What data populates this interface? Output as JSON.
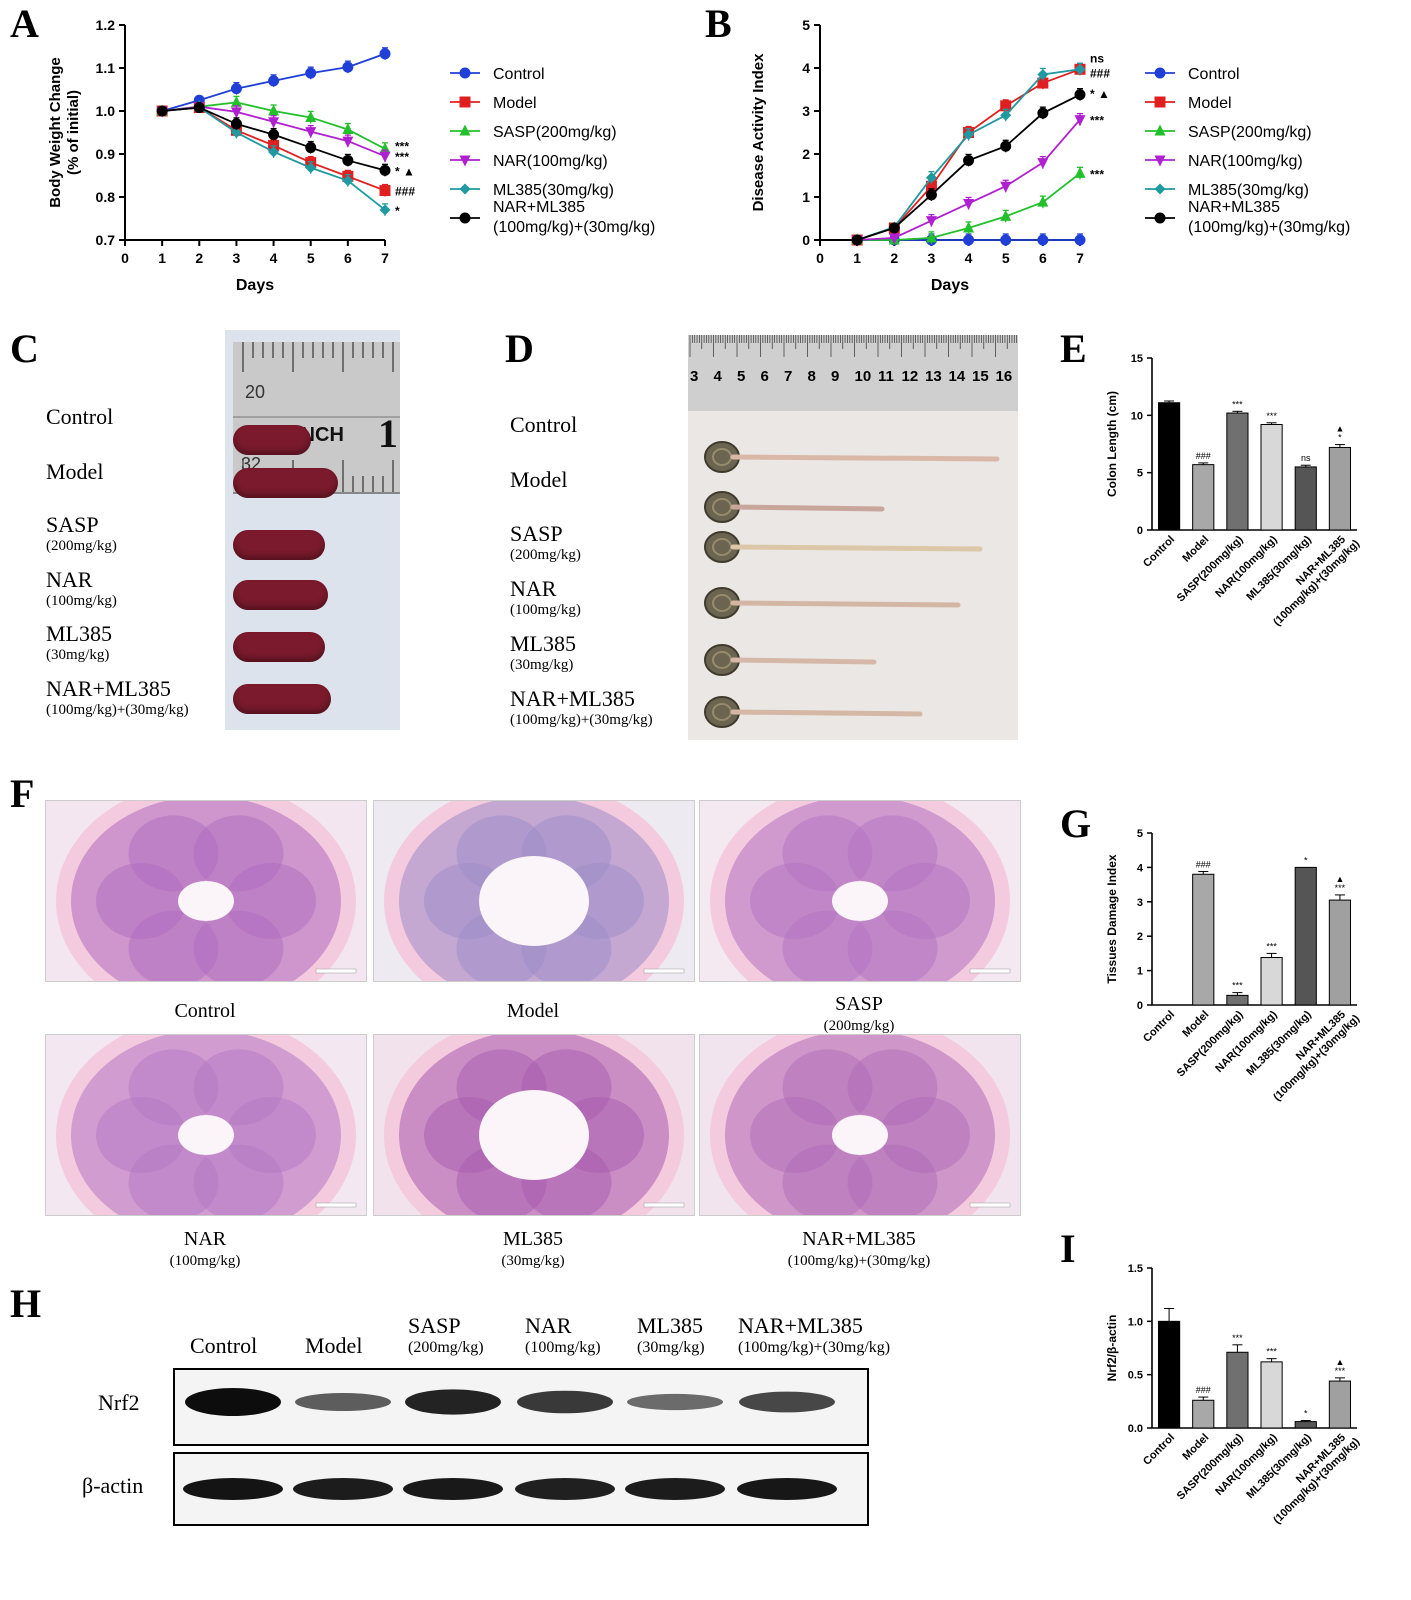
{
  "panel_labels": [
    "A",
    "B",
    "C",
    "D",
    "E",
    "F",
    "G",
    "H",
    "I"
  ],
  "chart_data": [
    {
      "id": "A",
      "type": "line",
      "xlabel": "Days",
      "ylabel": "Body Weight Change (% of initial)",
      "ylabel_lines": [
        "Body Weight Change",
        "(% of initial)"
      ],
      "xlim": [
        0,
        7
      ],
      "ylim": [
        0.7,
        1.2
      ],
      "xticks": [
        "0",
        "1",
        "2",
        "3",
        "4",
        "5",
        "6",
        "7"
      ],
      "yticks": [
        "0.7",
        "0.8",
        "0.9",
        "1.0",
        "1.1",
        "1.2"
      ],
      "x": [
        1,
        2,
        3,
        4,
        5,
        6,
        7
      ],
      "series": [
        {
          "name": "Control",
          "color": "#1f3fd6",
          "marker": "circle",
          "values": [
            1.0,
            1.025,
            1.052,
            1.07,
            1.088,
            1.102,
            1.133
          ]
        },
        {
          "name": "Model",
          "color": "#e02020",
          "marker": "square",
          "values": [
            1.0,
            1.008,
            0.955,
            0.92,
            0.88,
            0.848,
            0.815
          ]
        },
        {
          "name": "SASP(200mg/kg)",
          "color": "#22c02a",
          "marker": "triangle",
          "values": [
            1.0,
            1.01,
            1.02,
            1.0,
            0.985,
            0.957,
            0.912
          ]
        },
        {
          "name": "NAR(100mg/kg)",
          "color": "#b020d0",
          "marker": "triangle-down",
          "values": [
            1.0,
            1.01,
            0.998,
            0.975,
            0.952,
            0.93,
            0.895
          ]
        },
        {
          "name": "ML385(30mg/kg)",
          "color": "#1e9aa0",
          "marker": "diamond",
          "values": [
            1.0,
            1.008,
            0.95,
            0.905,
            0.868,
            0.838,
            0.77
          ]
        },
        {
          "name": "NAR+ML385 (100mg/kg)+(30mg/kg)",
          "color": "#000000",
          "marker": "circle",
          "values": [
            1.0,
            1.008,
            0.97,
            0.945,
            0.915,
            0.885,
            0.862
          ]
        }
      ],
      "annotations": [
        {
          "text": "***",
          "x": 7,
          "y": 0.92
        },
        {
          "text": "***",
          "x": 7,
          "y": 0.895
        },
        {
          "text": "* ▲",
          "x": 7,
          "y": 0.862
        },
        {
          "text": "###",
          "x": 7,
          "y": 0.815
        },
        {
          "text": "*",
          "x": 7,
          "y": 0.77
        }
      ]
    },
    {
      "id": "B",
      "type": "line",
      "xlabel": "Days",
      "ylabel": "Disease Activity Index",
      "xlim": [
        0,
        7
      ],
      "ylim": [
        0,
        5
      ],
      "xticks": [
        "0",
        "1",
        "2",
        "3",
        "4",
        "5",
        "6",
        "7"
      ],
      "yticks": [
        "0",
        "1",
        "2",
        "3",
        "4",
        "5"
      ],
      "x": [
        1,
        2,
        3,
        4,
        5,
        6,
        7
      ],
      "series": [
        {
          "name": "Control",
          "color": "#1f3fd6",
          "marker": "circle",
          "values": [
            0,
            0,
            0,
            0,
            0,
            0,
            0
          ]
        },
        {
          "name": "Model",
          "color": "#e02020",
          "marker": "square",
          "values": [
            0,
            0.28,
            1.25,
            2.5,
            3.12,
            3.65,
            3.97
          ]
        },
        {
          "name": "SASP(200mg/kg)",
          "color": "#22c02a",
          "marker": "triangle",
          "values": [
            0,
            0,
            0.05,
            0.28,
            0.55,
            0.88,
            1.55
          ]
        },
        {
          "name": "NAR(100mg/kg)",
          "color": "#b020d0",
          "marker": "triangle-down",
          "values": [
            0,
            0.05,
            0.45,
            0.85,
            1.25,
            1.8,
            2.8
          ]
        },
        {
          "name": "ML385(30mg/kg)",
          "color": "#1e9aa0",
          "marker": "diamond",
          "values": [
            0,
            0.3,
            1.45,
            2.45,
            2.9,
            3.85,
            3.97
          ]
        },
        {
          "name": "NAR+ML385 (100mg/kg)+(30mg/kg)",
          "color": "#000000",
          "marker": "circle",
          "values": [
            0,
            0.28,
            1.05,
            1.85,
            2.18,
            2.95,
            3.38
          ]
        }
      ],
      "annotations": [
        {
          "text": "ns",
          "x": 7,
          "y": 4.25
        },
        {
          "text": "###",
          "x": 7,
          "y": 3.9
        },
        {
          "text": "* ▲",
          "x": 7,
          "y": 3.42
        },
        {
          "text": "***",
          "x": 7,
          "y": 2.8
        },
        {
          "text": "***",
          "x": 7,
          "y": 1.55
        }
      ]
    },
    {
      "id": "E",
      "type": "bar",
      "ylabel": "Colon Length (cm)",
      "ylim": [
        0,
        15
      ],
      "yticks": [
        "0",
        "5",
        "10",
        "15"
      ],
      "categories": [
        "Control",
        "Model",
        "SASP(200mg/kg)",
        "NAR(100mg/kg)",
        "ML385(30mg/kg)",
        "NAR+ML385 (100mg/kg)+(30mg/kg)"
      ],
      "values": [
        11.1,
        5.7,
        10.2,
        9.2,
        5.5,
        7.2
      ],
      "errors": [
        0.15,
        0.15,
        0.15,
        0.15,
        0.15,
        0.25
      ],
      "colors": [
        "#000000",
        "#a8a8a8",
        "#707070",
        "#d8d8d8",
        "#555555",
        "#a0a0a0"
      ],
      "labels": [
        "",
        "###",
        "***",
        "***",
        "ns",
        "▲\n*"
      ]
    },
    {
      "id": "G",
      "type": "bar",
      "ylabel": "Tissues Damage Index",
      "ylim": [
        0,
        5
      ],
      "yticks": [
        "0",
        "1",
        "2",
        "3",
        "4",
        "5"
      ],
      "categories": [
        "Control",
        "Model",
        "SASP(200mg/kg)",
        "NAR(100mg/kg)",
        "ML385(30mg/kg)",
        "NAR+ML385 (100mg/kg)+(30mg/kg)"
      ],
      "values": [
        0,
        3.8,
        0.28,
        1.38,
        4.0,
        3.05
      ],
      "errors": [
        0,
        0.08,
        0.08,
        0.12,
        0,
        0.15
      ],
      "colors": [
        "#000000",
        "#a8a8a8",
        "#707070",
        "#d8d8d8",
        "#555555",
        "#a0a0a0"
      ],
      "labels": [
        "",
        "###",
        "***",
        "***",
        "*",
        "▲\n***"
      ]
    },
    {
      "id": "I",
      "type": "bar",
      "ylabel": "Nrf2/β-actin",
      "ylim": [
        0,
        1.5
      ],
      "yticks": [
        "0.0",
        "0.5",
        "1.0",
        "1.5"
      ],
      "categories": [
        "Control",
        "Model",
        "SASP(200mg/kg)",
        "NAR(100mg/kg)",
        "ML385(30mg/kg)",
        "NAR+ML385 (100mg/kg)+(30mg/kg)"
      ],
      "values": [
        1.0,
        0.26,
        0.71,
        0.62,
        0.06,
        0.44
      ],
      "errors": [
        0.12,
        0.03,
        0.07,
        0.03,
        0.01,
        0.03
      ],
      "colors": [
        "#000000",
        "#a8a8a8",
        "#707070",
        "#d8d8d8",
        "#555555",
        "#a0a0a0"
      ],
      "labels": [
        "",
        "###",
        "***",
        "***",
        "*",
        "▲\n***"
      ]
    }
  ],
  "panel_c": {
    "ruler_text": [
      "20",
      "32",
      "INCH",
      "1"
    ],
    "groups": [
      {
        "name": "Control",
        "dose": ""
      },
      {
        "name": "Model",
        "dose": ""
      },
      {
        "name": "SASP",
        "dose": "(200mg/kg)"
      },
      {
        "name": "NAR",
        "dose": "(100mg/kg)"
      },
      {
        "name": "ML385",
        "dose": "(30mg/kg)"
      },
      {
        "name": "NAR+ML385",
        "dose": "(100mg/kg)+(30mg/kg)"
      }
    ],
    "spleen_color": "#7a1a2c"
  },
  "panel_d": {
    "ruler_numbers": [
      "3",
      "4",
      "5",
      "6",
      "7",
      "8",
      "9",
      "10",
      "11",
      "12",
      "13",
      "14",
      "15",
      "16"
    ],
    "groups": [
      {
        "name": "Control",
        "dose": ""
      },
      {
        "name": "Model",
        "dose": ""
      },
      {
        "name": "SASP",
        "dose": "(200mg/kg)"
      },
      {
        "name": "NAR",
        "dose": "(100mg/kg)"
      },
      {
        "name": "ML385",
        "dose": "(30mg/kg)"
      },
      {
        "name": "NAR+ML385",
        "dose": "(100mg/kg)+(30mg/kg)"
      }
    ]
  },
  "panel_f": {
    "captions": [
      {
        "name": "Control",
        "dose": ""
      },
      {
        "name": "Model",
        "dose": ""
      },
      {
        "name": "SASP",
        "dose": "(200mg/kg)"
      },
      {
        "name": "NAR",
        "dose": "(100mg/kg)"
      },
      {
        "name": "ML385",
        "dose": "(30mg/kg)"
      },
      {
        "name": "NAR+ML385",
        "dose": "(100mg/kg)+(30mg/kg)"
      }
    ]
  },
  "panel_h": {
    "lanes": [
      {
        "name": "Control",
        "dose": ""
      },
      {
        "name": "Model",
        "dose": ""
      },
      {
        "name": "SASP",
        "dose": "(200mg/kg)"
      },
      {
        "name": "NAR",
        "dose": "(100mg/kg)"
      },
      {
        "name": "ML385",
        "dose": "(30mg/kg)"
      },
      {
        "name": "NAR+ML385",
        "dose": "(100mg/kg)+(30mg/kg)"
      }
    ],
    "row_labels": [
      "Nrf2",
      "β-actin"
    ],
    "nrf2_band_intensity": [
      1.0,
      0.45,
      0.85,
      0.7,
      0.35,
      0.6
    ],
    "actin_band_intensity": [
      0.95,
      0.9,
      0.92,
      0.88,
      0.9,
      0.93
    ]
  }
}
